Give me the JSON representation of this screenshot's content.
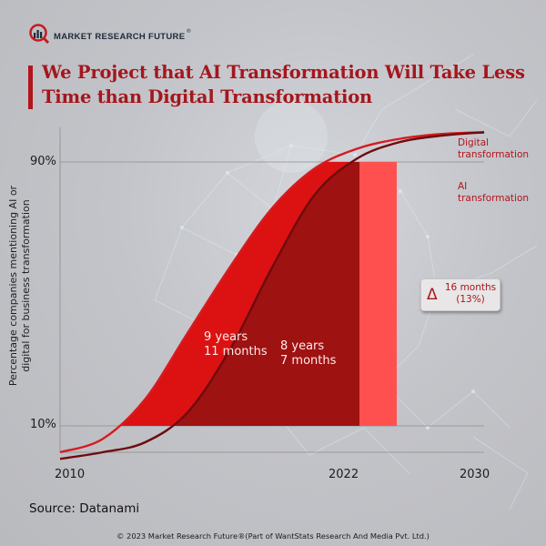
{
  "brand": {
    "name": "MARKET RESEARCH FUTURE",
    "registered_mark": "®"
  },
  "title": "We Project that AI Transformation Will Take Less Time than Digital Transformation",
  "colors": {
    "title": "#a5161c",
    "digital_fill": "#dc1212",
    "ai_fill": "#9e1211",
    "delta_fill": "#ff5050",
    "digital_line": "#d41c22",
    "ai_line": "#6e0b0e",
    "gridline": "#8c8c8f"
  },
  "chart_data": {
    "type": "area",
    "title": "We Project that AI Transformation Will Take Less Time than Digital Transformation",
    "xlabel": "",
    "ylabel": "Percentage companies mentioning AI or digital for business transformation",
    "x_ticks": [
      "2010",
      "2022",
      "2030"
    ],
    "y_ticks": [
      "10%",
      "90%"
    ],
    "xlim": [
      2010,
      2030
    ],
    "grid": true,
    "series": [
      {
        "name": "Digital transformation",
        "description": "S-curve adoption",
        "x": [
          2010,
          2012,
          2014,
          2016,
          2018,
          2020,
          2022,
          2024,
          2026,
          2028,
          2030
        ],
        "y": [
          2,
          6,
          18,
          38,
          58,
          76,
          88,
          94,
          97,
          98.5,
          99
        ]
      },
      {
        "name": "AI transformation",
        "description": "S-curve adoption, later start, steeper",
        "x": [
          2010,
          2012,
          2014,
          2016,
          2018,
          2020,
          2022,
          2024,
          2026,
          2028,
          2030
        ],
        "y": [
          0,
          2,
          5,
          14,
          33,
          58,
          80,
          91,
          96,
          98,
          99
        ]
      }
    ],
    "annotations": [
      {
        "label": "9 years 11 months",
        "line1": "9 years",
        "line2": "11 months",
        "refers_to": "Digital transformation: 10% to 90%"
      },
      {
        "label": "8 years 7 months",
        "line1": "8 years",
        "line2": "7 months",
        "refers_to": "AI transformation: 10% to 90%"
      },
      {
        "label": "Δ 16 months (13%)",
        "symbol": "Δ",
        "line1": "16 months",
        "line2": "(13%)",
        "refers_to": "difference"
      }
    ],
    "legend": [
      "Digital transformation",
      "AI transformation"
    ],
    "legend_placement": "right"
  },
  "labels": {
    "series_digital_line1": "Digital",
    "series_digital_line2": "transformation",
    "series_ai_line1": "AI",
    "series_ai_line2": "transformation"
  },
  "source": "Source: Datanami",
  "copyright": "© 2023 Market Research Future®(Part of WantStats Research And Media Pvt. Ltd.)"
}
